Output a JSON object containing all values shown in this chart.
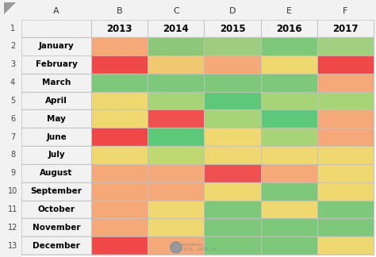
{
  "months": [
    "January",
    "February",
    "March",
    "April",
    "May",
    "June",
    "July",
    "August",
    "September",
    "October",
    "November",
    "December"
  ],
  "years": [
    "2013",
    "2014",
    "2015",
    "2016",
    "2017"
  ],
  "colors": [
    [
      "#F5A878",
      "#8DC87A",
      "#A0CC80",
      "#7DC87A",
      "#A0D080"
    ],
    [
      "#F04848",
      "#F0C870",
      "#F5A878",
      "#F0D870",
      "#F04848"
    ],
    [
      "#7DC87A",
      "#7DC87A",
      "#7DC87A",
      "#7DC87A",
      "#F5A878"
    ],
    [
      "#F0D870",
      "#A8D478",
      "#5DC87A",
      "#A8D478",
      "#A8D478"
    ],
    [
      "#F0D870",
      "#F05050",
      "#A8D478",
      "#5DC87A",
      "#F5A878"
    ],
    [
      "#F04848",
      "#5DC87A",
      "#F0D870",
      "#A8D478",
      "#F5A878"
    ],
    [
      "#F0D870",
      "#C0D870",
      "#F0D870",
      "#F0D870",
      "#F0D870"
    ],
    [
      "#F5A878",
      "#F5A878",
      "#F05050",
      "#F5A878",
      "#F0D870"
    ],
    [
      "#F5A878",
      "#F5A878",
      "#F0D870",
      "#7DC87A",
      "#F0D870"
    ],
    [
      "#F5A878",
      "#F0D870",
      "#7DC87A",
      "#F0D870",
      "#7DC87A"
    ],
    [
      "#F5A878",
      "#F0D870",
      "#7DC87A",
      "#7DC87A",
      "#7DC87A"
    ],
    [
      "#F04848",
      "#F5A878",
      "#7DC87A",
      "#7DC87A",
      "#F0D870"
    ]
  ],
  "background": "#FFFFFF",
  "header_bg": "#F2F2F2",
  "border_color": "#C0C0C0",
  "month_font_size": 7.5,
  "year_font_size": 8.5,
  "row_num_font_size": 7,
  "col_letter_font_size": 8
}
